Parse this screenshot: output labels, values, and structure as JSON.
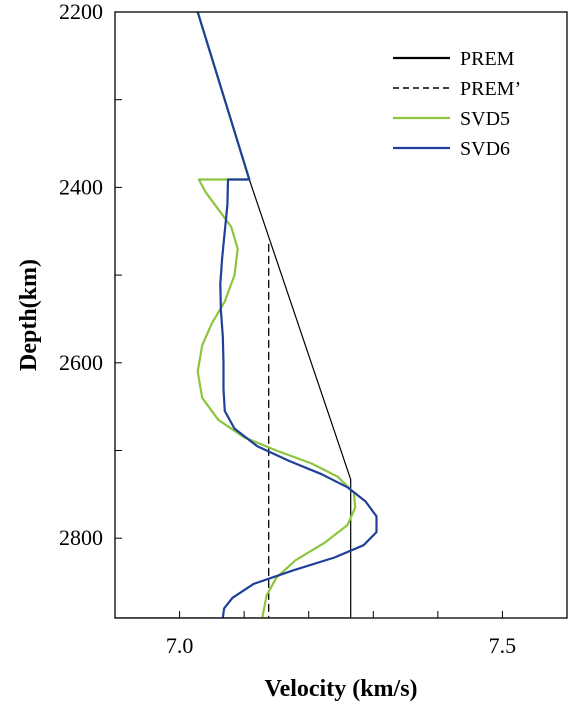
{
  "chart_data": {
    "type": "line",
    "xlabel": "Velocity (km/s)",
    "ylabel": "Depth(km)",
    "xlim": [
      6.9,
      7.6
    ],
    "ylim": [
      2200,
      2891
    ],
    "y_inverted": true,
    "x_ticks": [
      7.0,
      7.5
    ],
    "x_tick_labels": [
      "7.0",
      "7.5"
    ],
    "y_ticks": [
      2200,
      2400,
      2600,
      2800
    ],
    "y_tick_labels": [
      "2200",
      "2400",
      "2600",
      "2800"
    ],
    "x_minor_ticks": [
      6.9,
      7.0,
      7.1,
      7.2,
      7.3,
      7.4,
      7.5,
      7.6
    ],
    "y_minor_ticks": [
      2200,
      2300,
      2400,
      2500,
      2600,
      2700,
      2800
    ],
    "legend_position": "top-right",
    "grid": false,
    "series": [
      {
        "name": "PREM",
        "color": "#000000",
        "dash": "solid",
        "points": [
          [
            7.028,
            2200
          ],
          [
            7.108,
            2391
          ],
          [
            7.265,
            2733
          ],
          [
            7.265,
            2891
          ],
          [
            6.9,
            2891
          ]
        ]
      },
      {
        "name": "PREM’",
        "color": "#000000",
        "dash": "dashed",
        "points": [
          [
            7.138,
            2465
          ],
          [
            7.138,
            2891
          ]
        ]
      },
      {
        "name": "SVD5",
        "color": "#8cc63f",
        "dash": "solid",
        "points": [
          [
            7.028,
            2200
          ],
          [
            7.108,
            2391
          ],
          [
            7.03,
            2391
          ],
          [
            7.04,
            2405
          ],
          [
            7.06,
            2425
          ],
          [
            7.08,
            2445
          ],
          [
            7.09,
            2470
          ],
          [
            7.085,
            2500
          ],
          [
            7.07,
            2530
          ],
          [
            7.05,
            2555
          ],
          [
            7.035,
            2580
          ],
          [
            7.028,
            2610
          ],
          [
            7.035,
            2640
          ],
          [
            7.06,
            2665
          ],
          [
            7.1,
            2685
          ],
          [
            7.15,
            2700
          ],
          [
            7.205,
            2715
          ],
          [
            7.245,
            2730
          ],
          [
            7.27,
            2748
          ],
          [
            7.272,
            2765
          ],
          [
            7.26,
            2785
          ],
          [
            7.225,
            2805
          ],
          [
            7.18,
            2825
          ],
          [
            7.15,
            2845
          ],
          [
            7.135,
            2865
          ],
          [
            7.128,
            2891
          ]
        ]
      },
      {
        "name": "SVD6",
        "color": "#1f3f9a",
        "dash": "solid",
        "points": [
          [
            7.028,
            2200
          ],
          [
            7.108,
            2391
          ],
          [
            7.075,
            2391
          ],
          [
            7.074,
            2420
          ],
          [
            7.07,
            2450
          ],
          [
            7.066,
            2480
          ],
          [
            7.063,
            2510
          ],
          [
            7.064,
            2540
          ],
          [
            7.067,
            2570
          ],
          [
            7.068,
            2600
          ],
          [
            7.068,
            2630
          ],
          [
            7.07,
            2655
          ],
          [
            7.085,
            2675
          ],
          [
            7.12,
            2695
          ],
          [
            7.17,
            2712
          ],
          [
            7.22,
            2727
          ],
          [
            7.26,
            2742
          ],
          [
            7.288,
            2758
          ],
          [
            7.305,
            2775
          ],
          [
            7.305,
            2793
          ],
          [
            7.285,
            2808
          ],
          [
            7.24,
            2822
          ],
          [
            7.175,
            2837
          ],
          [
            7.115,
            2852
          ],
          [
            7.082,
            2868
          ],
          [
            7.069,
            2880
          ],
          [
            7.067,
            2891
          ]
        ]
      }
    ]
  }
}
